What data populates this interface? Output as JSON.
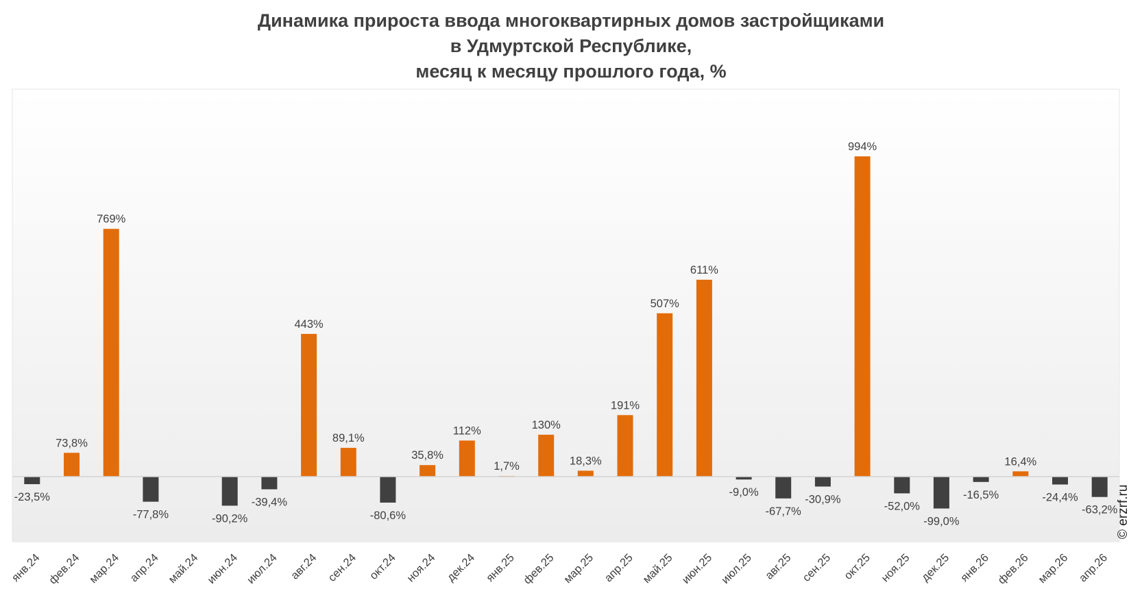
{
  "title_lines": [
    "Динамика прироста ввода многоквартирных домов застройщиками",
    "в Удмуртской Республике,",
    "месяц к месяцу прошлого года, %"
  ],
  "copyright": "© erzrf.ru",
  "colors": {
    "positive": "#e36c0a",
    "negative": "#404040",
    "baseline": "#d4d4d4",
    "text": "#404040"
  },
  "chart_data": {
    "type": "bar",
    "title": "Динамика прироста ввода многоквартирных домов застройщиками в Удмуртской Республике, месяц к месяцу прошлого года, %",
    "xlabel": "",
    "ylabel": "",
    "grid": false,
    "legend": "none",
    "categories": [
      "янв.24",
      "фев.24",
      "мар.24",
      "апр.24",
      "май.24",
      "июн.24",
      "июл.24",
      "авг.24",
      "сен.24",
      "окт.24",
      "ноя.24",
      "дек.24",
      "янв.25",
      "фев.25",
      "мар.25",
      "апр.25",
      "май.25",
      "июн.25",
      "июл.25",
      "авг.25",
      "сен.25",
      "окт.25",
      "ноя.25",
      "дек.25",
      "янв.26",
      "фев.26",
      "мар.26",
      "апр.26"
    ],
    "values": [
      -23.5,
      73.8,
      769,
      -77.8,
      null,
      -90.2,
      -39.4,
      443,
      89.1,
      -80.6,
      35.8,
      112,
      1.7,
      130,
      18.3,
      191,
      507,
      611,
      -9.0,
      -67.7,
      -30.9,
      994,
      -52.0,
      -99.0,
      -16.5,
      16.4,
      -24.4,
      -63.2
    ],
    "labels": [
      "-23,5%",
      "73,8%",
      "769%",
      "-77,8%",
      "",
      "-90,2%",
      "-39,4%",
      "443%",
      "89,1%",
      "-80,6%",
      "35,8%",
      "112%",
      "1,7%",
      "130%",
      "18,3%",
      "191%",
      "507%",
      "611%",
      "-9,0%",
      "-67,7%",
      "-30,9%",
      "994%",
      "-52,0%",
      "-99,0%",
      "-16,5%",
      "16,4%",
      "-24,4%",
      "-63,2%"
    ],
    "ylim": [
      -200,
      1200
    ]
  }
}
